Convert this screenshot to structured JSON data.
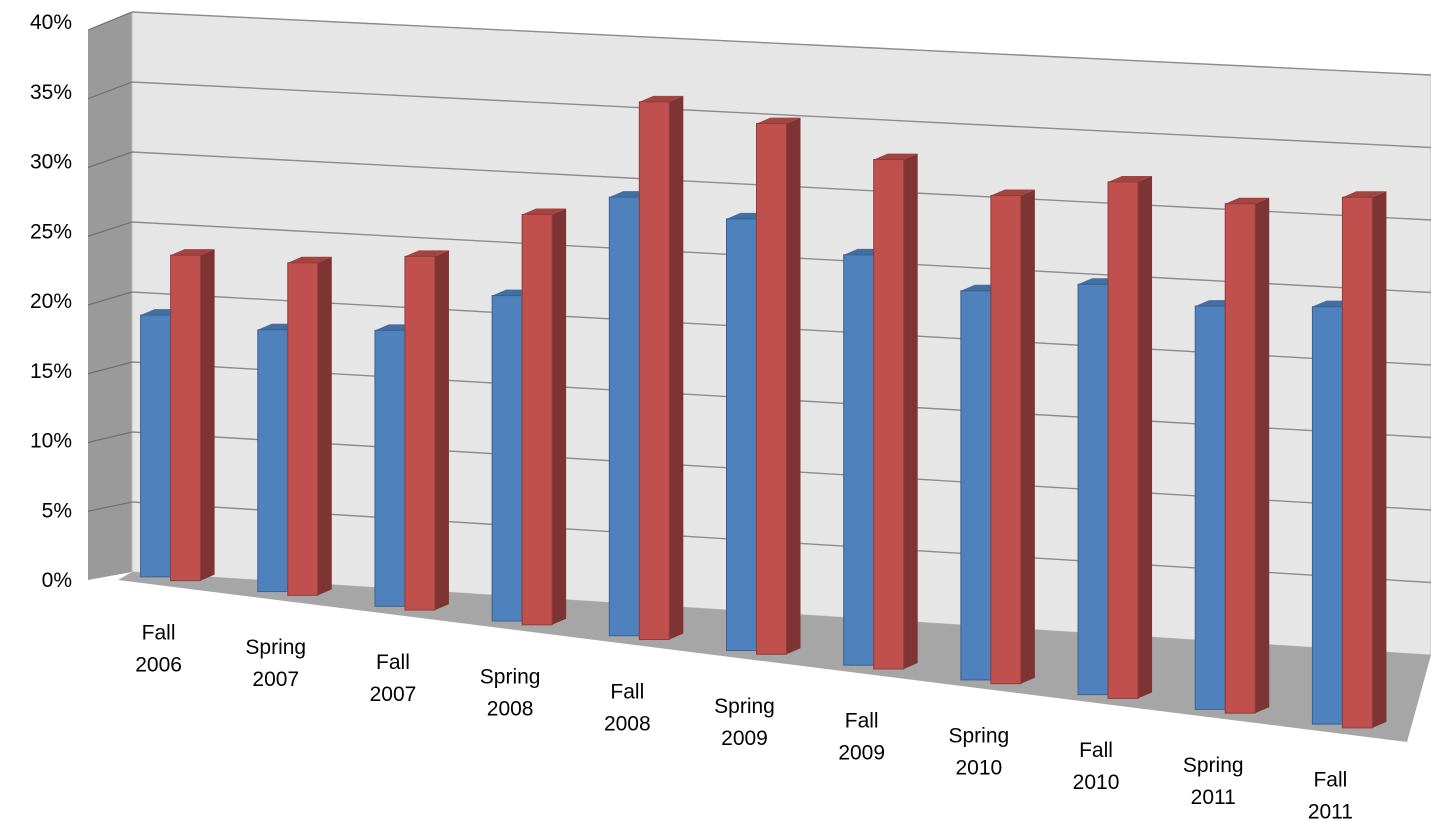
{
  "chart_data": {
    "type": "bar",
    "style": "3d-clustered-column",
    "categories": [
      [
        "Fall",
        "2006"
      ],
      [
        "Spring",
        "2007"
      ],
      [
        "Fall",
        "2007"
      ],
      [
        "Spring",
        "2008"
      ],
      [
        "Fall",
        "2008"
      ],
      [
        "Spring",
        "2009"
      ],
      [
        "Fall",
        "2009"
      ],
      [
        "Spring",
        "2010"
      ],
      [
        "Fall",
        "2010"
      ],
      [
        "Spring",
        "2011"
      ],
      [
        "Fall",
        "2011"
      ]
    ],
    "series": [
      {
        "values": [
          18.5,
          18.5,
          19.5,
          23,
          31,
          30.5,
          29,
          27.5,
          29,
          28.5,
          29.5
        ],
        "color": "#4f81bd"
      },
      {
        "values": [
          23,
          23.5,
          25,
          29,
          38,
          37.5,
          36,
          34.5,
          36.5,
          36,
          37.5
        ],
        "color": "#c0504d"
      }
    ],
    "yticks": [
      "0%",
      "5%",
      "10%",
      "15%",
      "20%",
      "25%",
      "30%",
      "35%",
      "40%"
    ],
    "ylim": [
      0,
      40
    ],
    "grid": true,
    "legend": "none",
    "colors": {
      "back_wall": "#e6e6e6",
      "side_wall": "#9a9a9a",
      "floor": "#a6a6a6",
      "gridline": "#8c8c8c"
    }
  }
}
